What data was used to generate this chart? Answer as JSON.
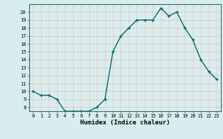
{
  "x": [
    0,
    1,
    2,
    3,
    4,
    5,
    6,
    7,
    8,
    9,
    10,
    11,
    12,
    13,
    14,
    15,
    16,
    17,
    18,
    19,
    20,
    21,
    22,
    23
  ],
  "y": [
    10,
    9.5,
    9.5,
    9,
    7.5,
    7.5,
    7.5,
    7.5,
    8,
    9,
    15,
    17,
    18,
    19,
    19,
    19,
    20.5,
    19.5,
    20,
    18,
    16.5,
    14,
    12.5,
    11.5
  ],
  "line_color": "#006666",
  "marker_color": "#006666",
  "bg_color": "#d8eeee",
  "grid_color": "#e8c8c8",
  "xlabel": "Humidex (Indice chaleur)",
  "ylim": [
    7.5,
    21.0
  ],
  "xlim": [
    -0.5,
    23.5
  ],
  "xticks": [
    0,
    1,
    2,
    3,
    4,
    5,
    6,
    7,
    8,
    9,
    10,
    11,
    12,
    13,
    14,
    15,
    16,
    17,
    18,
    19,
    20,
    21,
    22,
    23
  ],
  "yticks": [
    8,
    9,
    10,
    11,
    12,
    13,
    14,
    15,
    16,
    17,
    18,
    19,
    20
  ]
}
